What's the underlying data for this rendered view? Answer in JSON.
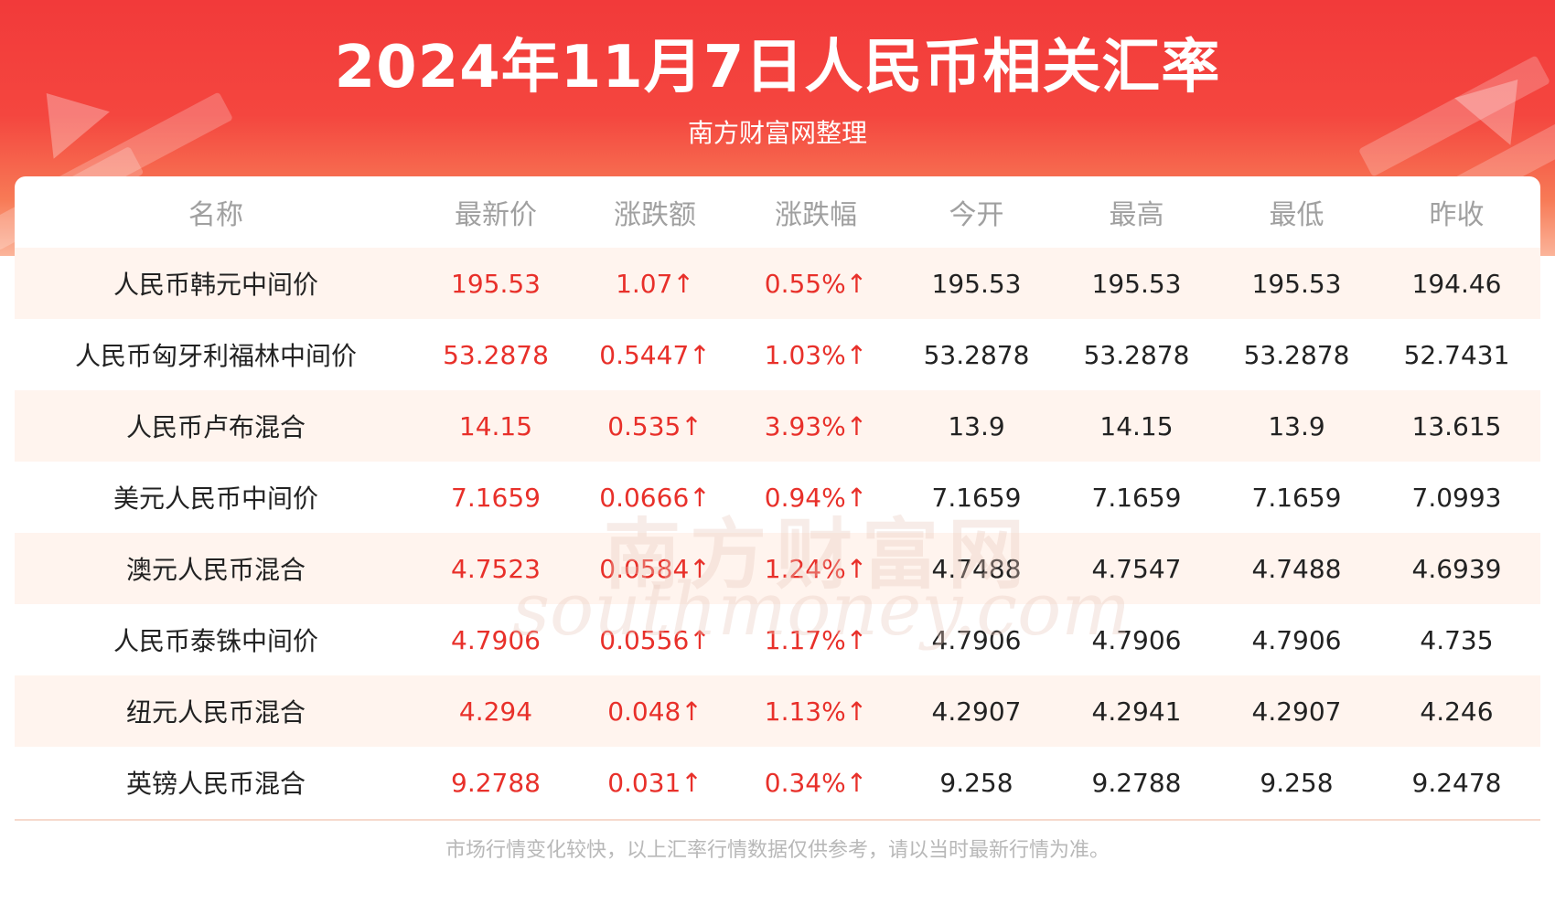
{
  "header": {
    "title": "2024年11月7日人民币相关汇率",
    "subtitle": "南方财富网整理"
  },
  "table": {
    "columns": [
      "名称",
      "最新价",
      "涨跌额",
      "涨跌幅",
      "今开",
      "最高",
      "最低",
      "昨收"
    ],
    "rows": [
      [
        "人民币韩元中间价",
        "195.53",
        "1.07↑",
        "0.55%↑",
        "195.53",
        "195.53",
        "195.53",
        "194.46"
      ],
      [
        "人民币匈牙利福林中间价",
        "53.2878",
        "0.5447↑",
        "1.03%↑",
        "53.2878",
        "53.2878",
        "53.2878",
        "52.7431"
      ],
      [
        "人民币卢布混合",
        "14.15",
        "0.535↑",
        "3.93%↑",
        "13.9",
        "14.15",
        "13.9",
        "13.615"
      ],
      [
        "美元人民币中间价",
        "7.1659",
        "0.0666↑",
        "0.94%↑",
        "7.1659",
        "7.1659",
        "7.1659",
        "7.0993"
      ],
      [
        "澳元人民币混合",
        "4.7523",
        "0.0584↑",
        "1.24%↑",
        "4.7488",
        "4.7547",
        "4.7488",
        "4.6939"
      ],
      [
        "人民币泰铢中间价",
        "4.7906",
        "0.0556↑",
        "1.17%↑",
        "4.7906",
        "4.7906",
        "4.7906",
        "4.735"
      ],
      [
        "纽元人民币混合",
        "4.294",
        "0.048↑",
        "1.13%↑",
        "4.2907",
        "4.2941",
        "4.2907",
        "4.246"
      ],
      [
        "英镑人民币混合",
        "9.2788",
        "0.031↑",
        "0.34%↑",
        "9.258",
        "9.2788",
        "9.258",
        "9.2478"
      ]
    ]
  },
  "watermark": {
    "cn": "南方财富网",
    "en": "southmoney.com"
  },
  "footer": {
    "note": "市场行情变化较快，以上汇率行情数据仅供参考，请以当时最新行情为准。"
  },
  "colors": {
    "banner": "#f23a3a",
    "up": "#e8302a",
    "alt_row": "#fff4ee",
    "header_text": "#a0a0a0"
  }
}
